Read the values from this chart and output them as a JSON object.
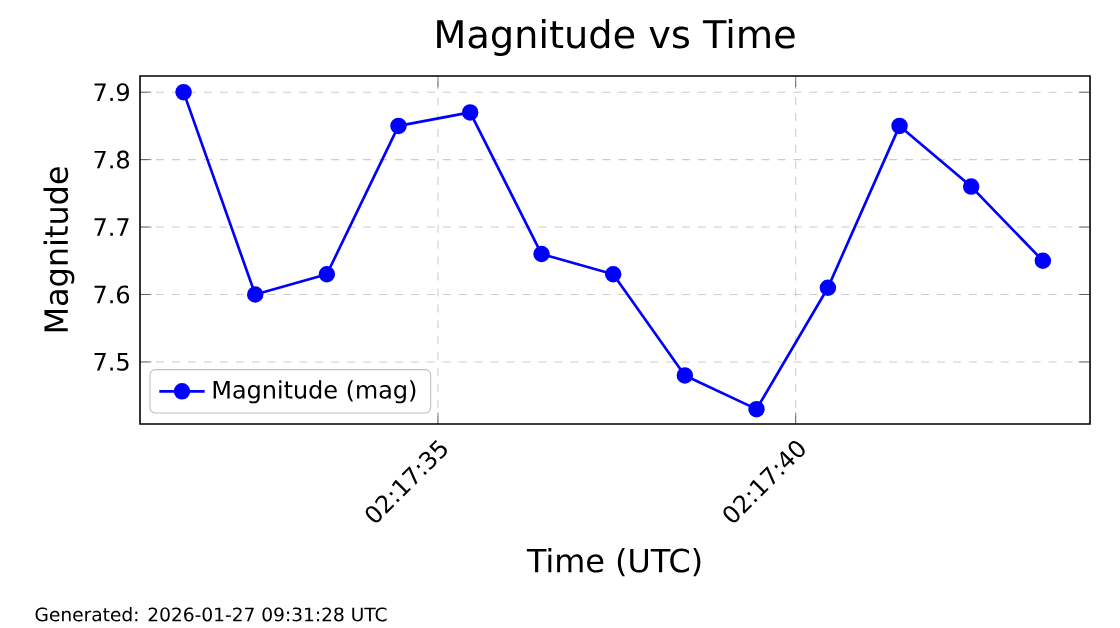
{
  "chart_data": {
    "type": "line",
    "title": "Magnitude vs Time",
    "xlabel": "Time (UTC)",
    "ylabel": "Magnitude",
    "x": [
      2.292069,
      2.292347,
      2.292625,
      2.292903,
      2.293181,
      2.293458,
      2.293736,
      2.294014,
      2.294292,
      2.294569,
      2.294847,
      2.295125,
      2.295403
    ],
    "series": [
      {
        "name": "Magnitude (mag)",
        "color": "#0000ff",
        "values": [
          7.9,
          7.6,
          7.63,
          7.85,
          7.87,
          7.66,
          7.63,
          7.48,
          7.43,
          7.61,
          7.85,
          7.76,
          7.65
        ]
      }
    ],
    "xlim": [
      2.2919,
      2.295586
    ],
    "xticks": [
      {
        "value": 2.293056,
        "label": "02:17:35"
      },
      {
        "value": 2.294444,
        "label": "02:17:40"
      }
    ],
    "ylim": [
      7.408,
      7.924
    ],
    "yticks": [
      7.5,
      7.6,
      7.7,
      7.8,
      7.9
    ],
    "grid": true,
    "legend": "bottom left",
    "marker": "circle",
    "line_style": "solid",
    "annotations": [
      "Generated: 2026-01-27 09:31:28 UTC"
    ]
  }
}
